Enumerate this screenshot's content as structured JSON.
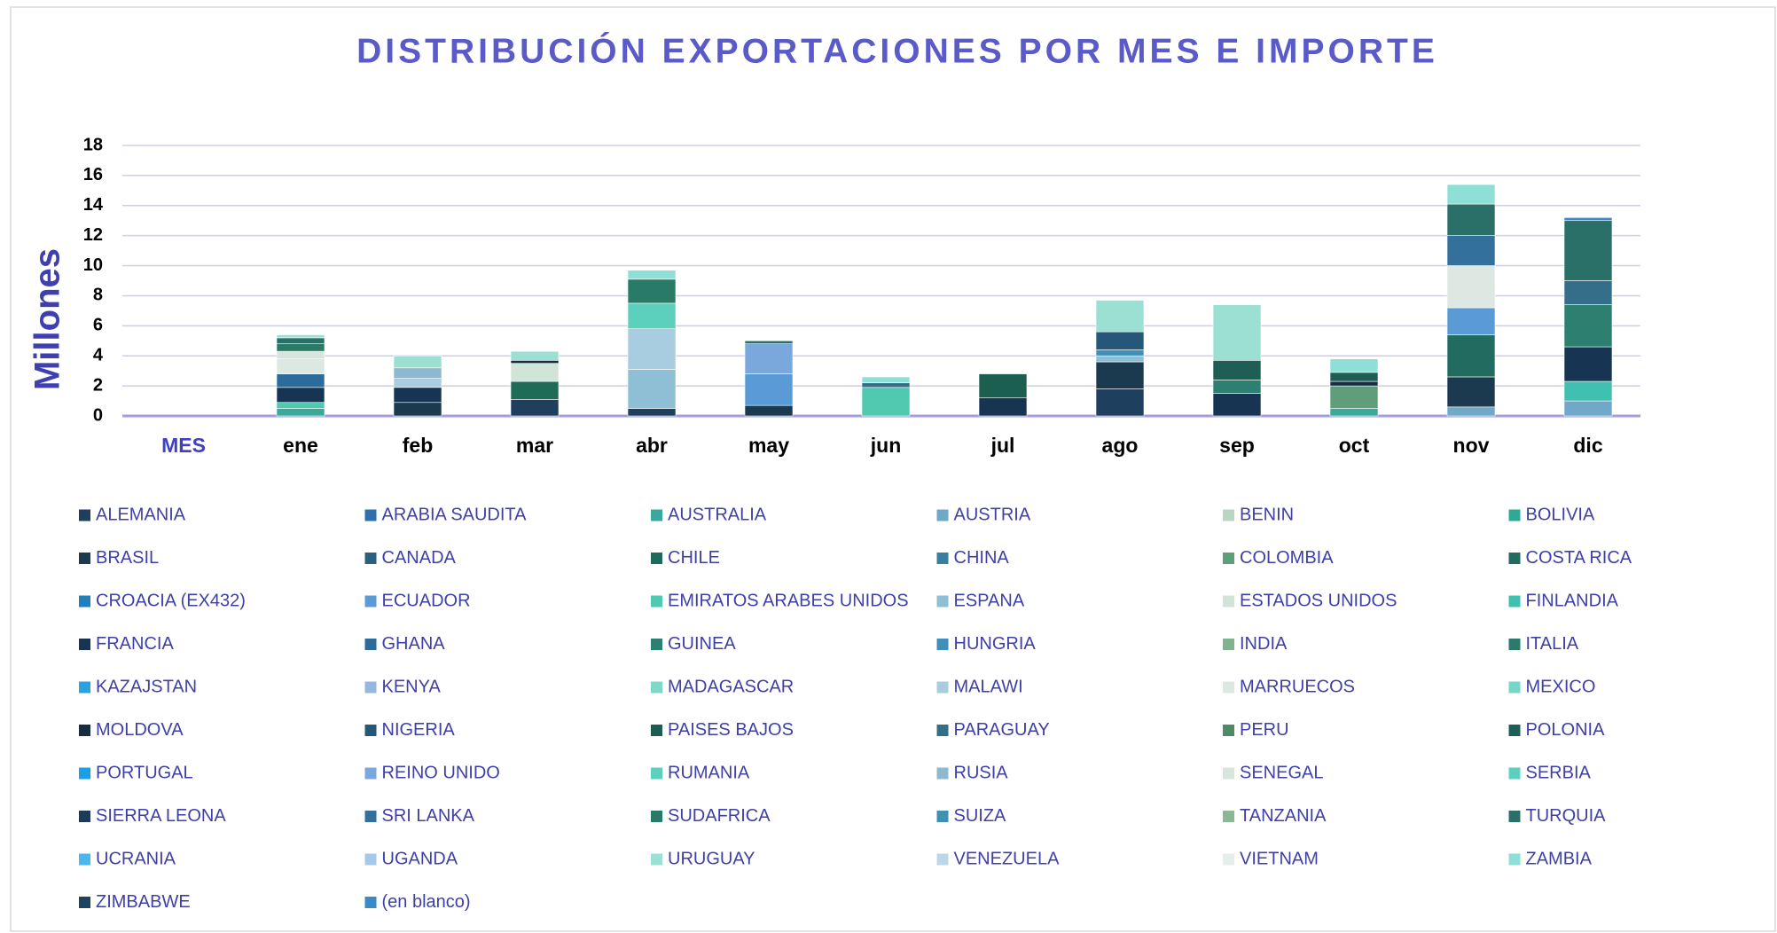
{
  "chart_data": {
    "type": "stacked_bar",
    "title": "DISTRIBUCIÓN EXPORTACIONES POR MES E IMPORTE",
    "y_label": "Millones",
    "x_label": "MES",
    "categories": [
      "ene",
      "feb",
      "mar",
      "abr",
      "may",
      "jun",
      "jul",
      "ago",
      "sep",
      "oct",
      "nov",
      "dic"
    ],
    "ylim": [
      0,
      18
    ],
    "yticks": [
      0,
      2,
      4,
      6,
      8,
      10,
      12,
      14,
      16,
      18
    ],
    "grid": true,
    "legend": "bottom",
    "series": [
      {
        "name": "ALEMANIA",
        "color": "#1f3f5f",
        "values": [
          null,
          null,
          1.1,
          0.5,
          null,
          null,
          null,
          1.8,
          null,
          null,
          null,
          null
        ]
      },
      {
        "name": "ARABIA SAUDITA",
        "color": "#2f6fae",
        "values": [
          null,
          null,
          null,
          null,
          null,
          null,
          null,
          null,
          null,
          null,
          null,
          null
        ]
      },
      {
        "name": "AUSTRALIA",
        "color": "#3aa89a",
        "values": [
          0.5,
          null,
          null,
          null,
          null,
          null,
          null,
          null,
          null,
          0.5,
          null,
          null
        ]
      },
      {
        "name": "AUSTRIA",
        "color": "#6fa8c8",
        "values": [
          null,
          null,
          null,
          null,
          null,
          null,
          null,
          null,
          null,
          null,
          0.6,
          1.0
        ]
      },
      {
        "name": "BENIN",
        "color": "#b9d6c4",
        "values": [
          null,
          null,
          null,
          null,
          null,
          null,
          null,
          null,
          null,
          null,
          null,
          null
        ]
      },
      {
        "name": "BOLIVIA",
        "color": "#2fa898",
        "values": [
          null,
          null,
          null,
          null,
          null,
          null,
          null,
          null,
          null,
          null,
          null,
          null
        ]
      },
      {
        "name": "BRASIL",
        "color": "#1b3a4f",
        "values": [
          null,
          0.9,
          null,
          null,
          0.7,
          null,
          null,
          1.8,
          null,
          null,
          2.0,
          null
        ]
      },
      {
        "name": "CANADA",
        "color": "#2b5f80",
        "values": [
          null,
          null,
          null,
          null,
          null,
          null,
          null,
          null,
          null,
          null,
          null,
          null
        ]
      },
      {
        "name": "CHILE",
        "color": "#1f6b5a",
        "values": [
          null,
          null,
          1.2,
          null,
          null,
          null,
          null,
          null,
          null,
          null,
          null,
          null
        ]
      },
      {
        "name": "CHINA",
        "color": "#3a7fa0",
        "values": [
          null,
          null,
          null,
          null,
          null,
          null,
          null,
          null,
          null,
          null,
          null,
          null
        ]
      },
      {
        "name": "COLOMBIA",
        "color": "#5e9e78",
        "values": [
          null,
          null,
          null,
          null,
          null,
          null,
          null,
          null,
          null,
          1.5,
          null,
          null
        ]
      },
      {
        "name": "COSTA RICA",
        "color": "#226b60",
        "values": [
          null,
          null,
          null,
          null,
          null,
          null,
          null,
          null,
          null,
          null,
          2.8,
          null
        ]
      },
      {
        "name": "CROACIA (EX432)",
        "color": "#1f7fbf",
        "values": [
          null,
          null,
          null,
          null,
          null,
          null,
          null,
          null,
          null,
          null,
          null,
          null
        ]
      },
      {
        "name": "ECUADOR",
        "color": "#5b9bd5",
        "values": [
          null,
          null,
          null,
          null,
          2.1,
          null,
          null,
          null,
          null,
          null,
          1.8,
          null
        ]
      },
      {
        "name": "EMIRATOS ARABES UNIDOS",
        "color": "#4fc9b0",
        "values": [
          0.4,
          null,
          null,
          null,
          null,
          1.9,
          null,
          null,
          null,
          null,
          null,
          null
        ]
      },
      {
        "name": "ESPANA",
        "color": "#8fbfd5",
        "values": [
          null,
          null,
          null,
          2.6,
          null,
          null,
          null,
          0.4,
          null,
          null,
          null,
          null
        ]
      },
      {
        "name": "ESTADOS UNIDOS",
        "color": "#d0e4d8",
        "values": [
          null,
          null,
          1.2,
          null,
          null,
          null,
          null,
          null,
          null,
          null,
          null,
          null
        ]
      },
      {
        "name": "FINLANDIA",
        "color": "#40c0b0",
        "values": [
          null,
          null,
          null,
          null,
          null,
          null,
          null,
          null,
          null,
          null,
          null,
          1.3
        ]
      },
      {
        "name": "FRANCIA",
        "color": "#173552",
        "values": [
          1.0,
          1.0,
          null,
          null,
          null,
          null,
          1.2,
          null,
          1.5,
          null,
          null,
          2.3
        ]
      },
      {
        "name": "GHANA",
        "color": "#2c6b9a",
        "values": [
          0.9,
          null,
          null,
          null,
          null,
          null,
          null,
          null,
          null,
          null,
          null,
          null
        ]
      },
      {
        "name": "GUINEA",
        "color": "#2d8070",
        "values": [
          null,
          null,
          null,
          null,
          null,
          null,
          null,
          null,
          0.9,
          null,
          null,
          2.8
        ]
      },
      {
        "name": "HUNGRIA",
        "color": "#3f8fb8",
        "values": [
          null,
          null,
          null,
          null,
          null,
          null,
          null,
          0.4,
          null,
          null,
          null,
          null
        ]
      },
      {
        "name": "INDIA",
        "color": "#7fb38f",
        "values": [
          null,
          null,
          null,
          null,
          null,
          null,
          null,
          null,
          null,
          null,
          null,
          null
        ]
      },
      {
        "name": "ITALIA",
        "color": "#2a7a6e",
        "values": [
          null,
          null,
          null,
          null,
          null,
          null,
          null,
          null,
          null,
          null,
          null,
          null
        ]
      },
      {
        "name": "KAZAJSTAN",
        "color": "#29a3e0",
        "values": [
          null,
          null,
          null,
          null,
          null,
          null,
          null,
          null,
          null,
          null,
          null,
          null
        ]
      },
      {
        "name": "KENYA",
        "color": "#94b8e0",
        "values": [
          null,
          null,
          null,
          null,
          null,
          null,
          null,
          null,
          null,
          null,
          null,
          null
        ]
      },
      {
        "name": "MADAGASCAR",
        "color": "#7fd8c8",
        "values": [
          null,
          null,
          null,
          null,
          null,
          null,
          null,
          null,
          null,
          null,
          null,
          null
        ]
      },
      {
        "name": "MALAWI",
        "color": "#a9cde0",
        "values": [
          null,
          0.6,
          null,
          2.7,
          null,
          null,
          null,
          null,
          null,
          null,
          null,
          null
        ]
      },
      {
        "name": "MARRUECOS",
        "color": "#dde8e2",
        "values": [
          1.0,
          null,
          null,
          null,
          null,
          null,
          null,
          null,
          null,
          null,
          2.8,
          null
        ]
      },
      {
        "name": "MEXICO",
        "color": "#76d6cc",
        "values": [
          null,
          null,
          null,
          null,
          null,
          null,
          null,
          null,
          null,
          null,
          null,
          null
        ]
      },
      {
        "name": "MOLDOVA",
        "color": "#152e44",
        "values": [
          null,
          null,
          0.2,
          null,
          null,
          null,
          null,
          null,
          null,
          0.3,
          null,
          null
        ]
      },
      {
        "name": "NIGERIA",
        "color": "#275778",
        "values": [
          null,
          null,
          null,
          null,
          null,
          null,
          null,
          1.2,
          null,
          null,
          null,
          null
        ]
      },
      {
        "name": "PAISES BAJOS",
        "color": "#1c5e50",
        "values": [
          null,
          null,
          null,
          null,
          null,
          null,
          1.6,
          null,
          null,
          null,
          null,
          null
        ]
      },
      {
        "name": "PARAGUAY",
        "color": "#346f8a",
        "values": [
          null,
          null,
          null,
          null,
          null,
          0.3,
          null,
          null,
          null,
          null,
          null,
          1.6
        ]
      },
      {
        "name": "PERU",
        "color": "#4f8a66",
        "values": [
          null,
          null,
          null,
          null,
          null,
          null,
          null,
          null,
          null,
          null,
          null,
          null
        ]
      },
      {
        "name": "POLONIA",
        "color": "#1e5e55",
        "values": [
          null,
          null,
          null,
          null,
          null,
          null,
          null,
          null,
          1.3,
          0.6,
          null,
          null
        ]
      },
      {
        "name": "PORTUGAL",
        "color": "#1aa0e8",
        "values": [
          null,
          null,
          null,
          null,
          null,
          null,
          null,
          null,
          null,
          null,
          null,
          null
        ]
      },
      {
        "name": "REINO UNIDO",
        "color": "#7aa8dc",
        "values": [
          null,
          null,
          null,
          null,
          2.0,
          null,
          null,
          null,
          null,
          null,
          null,
          null
        ]
      },
      {
        "name": "RUMANIA",
        "color": "#5cd0bc",
        "values": [
          null,
          null,
          null,
          1.7,
          null,
          null,
          null,
          null,
          null,
          null,
          null,
          null
        ]
      },
      {
        "name": "RUSIA",
        "color": "#8cb8d0",
        "values": [
          null,
          0.7,
          null,
          null,
          null,
          null,
          null,
          null,
          null,
          null,
          null,
          null
        ]
      },
      {
        "name": "SENEGAL",
        "color": "#d6e6dc",
        "values": [
          0.5,
          null,
          null,
          null,
          null,
          null,
          null,
          null,
          null,
          null,
          null,
          null
        ]
      },
      {
        "name": "SERBIA",
        "color": "#5ccfc0",
        "values": [
          null,
          null,
          null,
          null,
          null,
          null,
          null,
          null,
          null,
          null,
          null,
          null
        ]
      },
      {
        "name": "SIERRA LEONA",
        "color": "#1a3c58",
        "values": [
          null,
          null,
          null,
          null,
          null,
          null,
          null,
          null,
          null,
          null,
          null,
          null
        ]
      },
      {
        "name": "SRI LANKA",
        "color": "#33709c",
        "values": [
          null,
          null,
          null,
          null,
          null,
          null,
          null,
          null,
          null,
          null,
          2.0,
          null
        ]
      },
      {
        "name": "SUDAFRICA",
        "color": "#2a7a68",
        "values": [
          0.5,
          null,
          null,
          1.6,
          null,
          null,
          null,
          null,
          null,
          null,
          null,
          null
        ]
      },
      {
        "name": "SUIZA",
        "color": "#4090b0",
        "values": [
          null,
          null,
          null,
          null,
          null,
          null,
          null,
          null,
          null,
          null,
          null,
          null
        ]
      },
      {
        "name": "TANZANIA",
        "color": "#8ab896",
        "values": [
          null,
          null,
          null,
          null,
          null,
          null,
          null,
          null,
          null,
          null,
          null,
          null
        ]
      },
      {
        "name": "TURQUIA",
        "color": "#2a7068",
        "values": [
          0.4,
          null,
          null,
          null,
          0.2,
          null,
          null,
          null,
          null,
          null,
          2.1,
          4.0
        ]
      },
      {
        "name": "UCRANIA",
        "color": "#4ab8f0",
        "values": [
          null,
          null,
          null,
          null,
          null,
          null,
          null,
          null,
          null,
          null,
          null,
          null
        ]
      },
      {
        "name": "UGANDA",
        "color": "#a8c8ea",
        "values": [
          null,
          null,
          null,
          null,
          null,
          null,
          null,
          null,
          null,
          null,
          null,
          null
        ]
      },
      {
        "name": "URUGUAY",
        "color": "#9ce0d4",
        "values": [
          0.2,
          0.8,
          0.6,
          null,
          null,
          null,
          null,
          2.1,
          3.7,
          null,
          null,
          null
        ]
      },
      {
        "name": "VENEZUELA",
        "color": "#bcd8e8",
        "values": [
          null,
          null,
          null,
          null,
          null,
          null,
          null,
          null,
          null,
          null,
          null,
          null
        ]
      },
      {
        "name": "VIETNAM",
        "color": "#e4eeea",
        "values": [
          null,
          null,
          null,
          null,
          null,
          null,
          null,
          null,
          null,
          null,
          null,
          null
        ]
      },
      {
        "name": "ZAMBIA",
        "color": "#8ee0d6",
        "values": [
          null,
          null,
          null,
          0.6,
          null,
          0.4,
          null,
          null,
          null,
          0.9,
          1.3,
          null
        ]
      },
      {
        "name": "ZIMBABWE",
        "color": "#1c4460",
        "values": [
          null,
          null,
          null,
          null,
          null,
          null,
          null,
          null,
          null,
          null,
          null,
          null
        ]
      },
      {
        "name": "(en blanco)",
        "color": "#3a8ac8",
        "values": [
          null,
          null,
          null,
          null,
          null,
          null,
          null,
          null,
          null,
          null,
          null,
          0.2
        ]
      }
    ]
  }
}
